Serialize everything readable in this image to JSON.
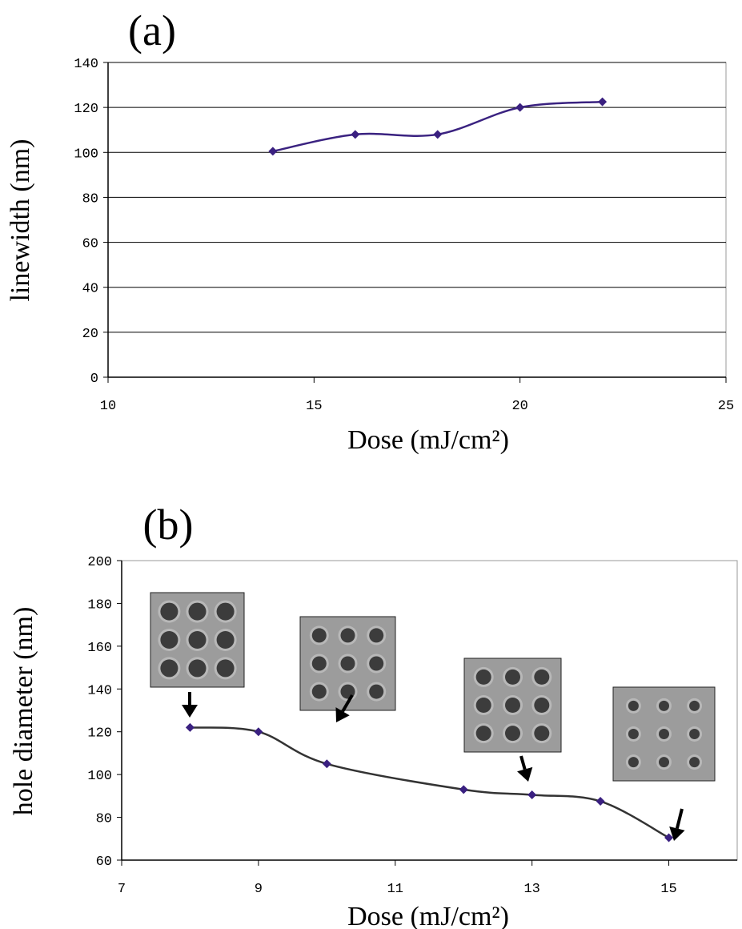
{
  "chart_data": [
    {
      "type": "line",
      "title": "(a)",
      "xlabel": "Dose (mJ/cm²)",
      "ylabel": "linewidth (nm)",
      "x": [
        14,
        16,
        18,
        20,
        22
      ],
      "values": [
        100.5,
        108,
        108,
        120,
        122.5
      ],
      "line_color": "#3a2280",
      "marker_color": "#3a2080",
      "xlim": [
        10,
        25
      ],
      "xticks": [
        10,
        15,
        20,
        25
      ],
      "ylim": [
        0,
        140
      ],
      "yticks": [
        0,
        20,
        40,
        60,
        80,
        100,
        120,
        140
      ],
      "grid": true
    },
    {
      "type": "line",
      "title": "(b)",
      "xlabel": "Dose (mJ/cm²)",
      "ylabel": "hole diameter (nm)",
      "x": [
        8,
        9,
        10,
        12,
        13,
        14,
        15
      ],
      "values": [
        122,
        120,
        105,
        93,
        90.5,
        87.5,
        70.5
      ],
      "line_color": "#333333",
      "marker_color": "#3a2080",
      "xlim": [
        7,
        16
      ],
      "xticks": [
        7,
        9,
        11,
        13,
        15
      ],
      "ylim": [
        60,
        200
      ],
      "yticks": [
        60,
        80,
        100,
        120,
        140,
        160,
        180,
        200
      ],
      "grid": false
    }
  ]
}
